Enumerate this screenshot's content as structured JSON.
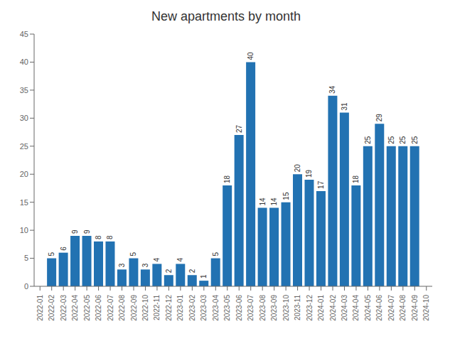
{
  "chart_data": {
    "type": "bar",
    "title": "New apartments by month",
    "categories": [
      "2022-01",
      "2022-02",
      "2022-03",
      "2022-04",
      "2022-05",
      "2022-06",
      "2022-07",
      "2022-08",
      "2022-09",
      "2022-10",
      "2022-11",
      "2022-12",
      "2023-01",
      "2023-02",
      "2023-03",
      "2023-04",
      "2023-05",
      "2023-06",
      "2023-07",
      "2023-08",
      "2023-09",
      "2023-10",
      "2023-11",
      "2023-12",
      "2024-01",
      "2024-02",
      "2024-03",
      "2024-04",
      "2024-05",
      "2024-06",
      "2024-07",
      "2024-08",
      "2024-09",
      "2024-10"
    ],
    "values": [
      0,
      5,
      6,
      9,
      9,
      8,
      8,
      3,
      5,
      3,
      4,
      2,
      4,
      2,
      1,
      5,
      18,
      27,
      40,
      14,
      14,
      15,
      20,
      19,
      17,
      34,
      31,
      18,
      25,
      29,
      25,
      25,
      25,
      0
    ],
    "value_labels": [
      null,
      "5",
      "6",
      "9",
      "9",
      "8",
      "8",
      "3",
      "5",
      "3",
      "4",
      "2",
      "4",
      "2",
      "1",
      "5",
      "18",
      "27",
      "40",
      "14",
      "14",
      "15",
      "20",
      "19",
      "17",
      "34",
      "31",
      "18",
      "25",
      "29",
      "25",
      "25",
      "25",
      null
    ],
    "color": "#2272b2",
    "data_labels": true,
    "ylim": [
      0,
      45
    ],
    "yticks": [
      0,
      5,
      10,
      15,
      20,
      25,
      30,
      35,
      40,
      45
    ],
    "grid": false
  }
}
